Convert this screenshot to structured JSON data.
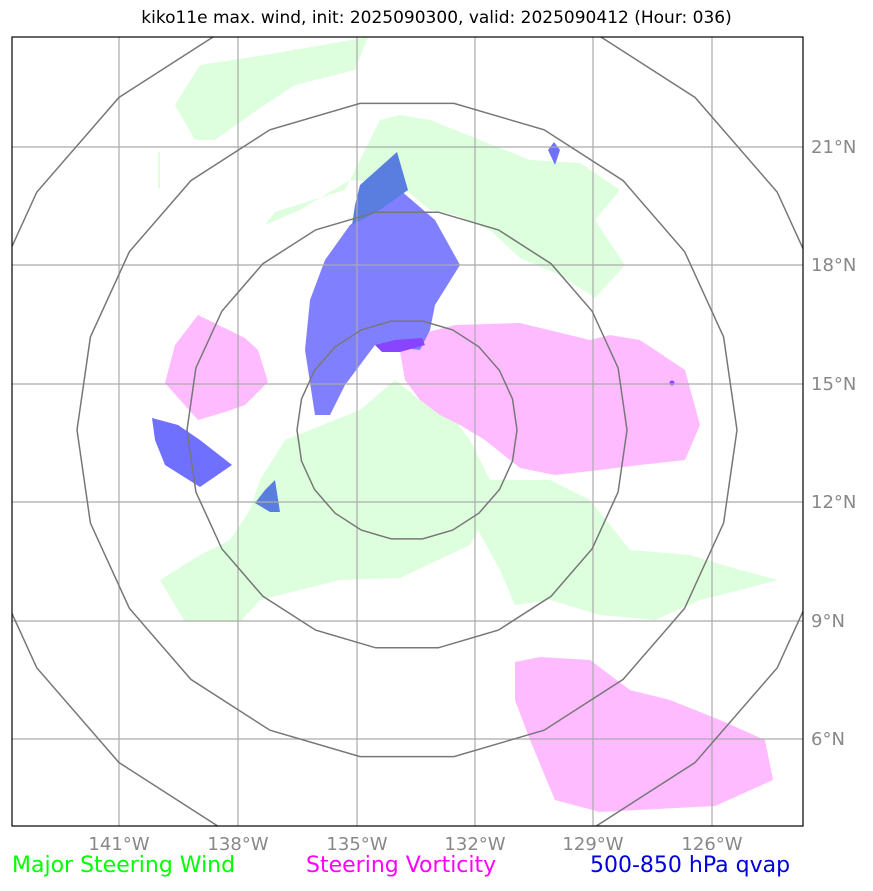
{
  "title": "kiko11e max. wind, init: 2025090300, valid: 2025090412 (Hour: 036)",
  "lon_labels": [
    "141°W",
    "138°W",
    "135°W",
    "132°W",
    "129°W",
    "126°W"
  ],
  "lat_labels": [
    "21°N",
    "18°N",
    "15°N",
    "12°N",
    "9°N",
    "6°N"
  ],
  "legend": {
    "steering_wind": {
      "label": "Major Steering Wind",
      "color": "#00ff00"
    },
    "steering_vorticity": {
      "label": "Steering Vorticity",
      "color": "#ff00ff"
    },
    "qvap": {
      "label": "500-850 hPa qvap",
      "color": "#0000dd"
    }
  },
  "colors": {
    "wind_fill": "#ddffdd",
    "vorticity_fill": "#ffbbff",
    "qvap_fill": "#8080ff",
    "qvap_dark": "#5a7ee0",
    "qvap_purple": "#8844ff",
    "grid": "#aaaaaa",
    "rings": "#777777"
  }
}
